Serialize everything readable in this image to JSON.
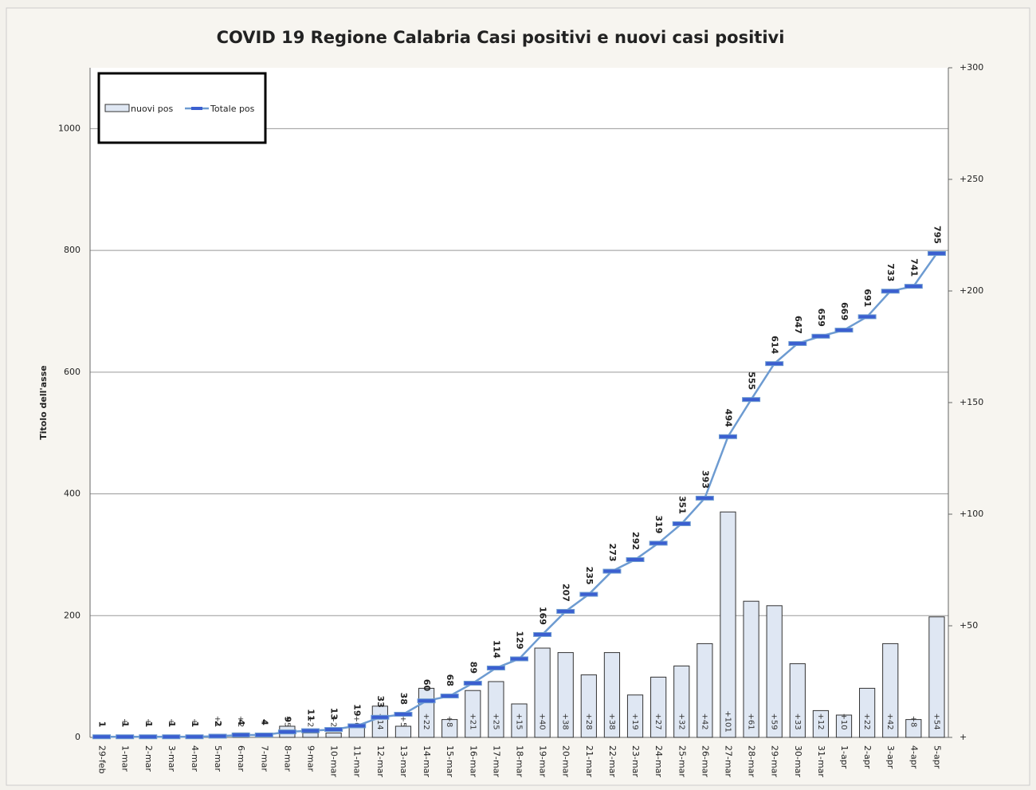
{
  "chart_data": {
    "type": "combo",
    "title": "COVID 19  Regione Calabria Casi positivi e nuovi casi positivi",
    "y_label": "Titolo dell'asse",
    "categories": [
      "29-feb",
      "1-mar",
      "2-mar",
      "3-mar",
      "4-mar",
      "5-mar",
      "6-mar",
      "7-mar",
      "8-mar",
      "9-mar",
      "10-mar",
      "11-mar",
      "12-mar",
      "13-mar",
      "14-mar",
      "15-mar",
      "16-mar",
      "17-mar",
      "18-mar",
      "19-mar",
      "20-mar",
      "21-mar",
      "22-mar",
      "23-mar",
      "24-mar",
      "25-mar",
      "26-mar",
      "27-mar",
      "28-mar",
      "29-mar",
      "30-mar",
      "31-mar",
      "1-apr",
      "2-apr",
      "3-apr",
      "4-apr",
      "5-apr"
    ],
    "series": [
      {
        "name": "nuovi pos",
        "type": "bar",
        "axis": "y2",
        "color": "#dfe7f3",
        "values": [
          1,
          0,
          0,
          0,
          0,
          1,
          2,
          0,
          5,
          2,
          2,
          6,
          14,
          5,
          22,
          8,
          21,
          25,
          15,
          40,
          38,
          28,
          38,
          19,
          27,
          32,
          42,
          101,
          61,
          59,
          33,
          12,
          10,
          22,
          42,
          8,
          54
        ],
        "value_labels": [
          null,
          "+",
          "+",
          "+",
          "+",
          "+1",
          "+2",
          "+",
          "+5",
          "+2",
          "+2",
          "+6",
          "+14",
          "+5",
          "+22",
          "+8",
          "+21",
          "+25",
          "+15",
          "+40",
          "+38",
          "+28",
          "+38",
          "+19",
          "+27",
          "+32",
          "+42",
          "+101",
          "+61",
          "+59",
          "+33",
          "+12",
          "+10",
          "+22",
          "+42",
          "+8",
          "+54"
        ]
      },
      {
        "name": "Totale pos",
        "type": "line",
        "color": "#6d9bd1",
        "values": [
          1,
          1,
          1,
          1,
          1,
          2,
          4,
          4,
          9,
          11,
          13,
          19,
          33,
          38,
          60,
          68,
          89,
          114,
          129,
          169,
          207,
          235,
          273,
          292,
          319,
          351,
          393,
          494,
          555,
          614,
          647,
          659,
          669,
          691,
          733,
          741,
          795
        ]
      }
    ],
    "ylim": [
      0,
      1100
    ],
    "yticks": [
      0,
      200,
      400,
      600,
      800,
      1000
    ],
    "y2lim": [
      0,
      300
    ],
    "y2ticks": [
      {
        "value": 0,
        "label": "+"
      },
      {
        "value": 50,
        "label": "+50"
      },
      {
        "value": 100,
        "label": "+100"
      },
      {
        "value": 150,
        "label": "+150"
      },
      {
        "value": 200,
        "label": "+200"
      },
      {
        "value": 250,
        "label": "+250"
      },
      {
        "value": 300,
        "label": "+300"
      }
    ],
    "grid": true,
    "legend": "top-left"
  }
}
